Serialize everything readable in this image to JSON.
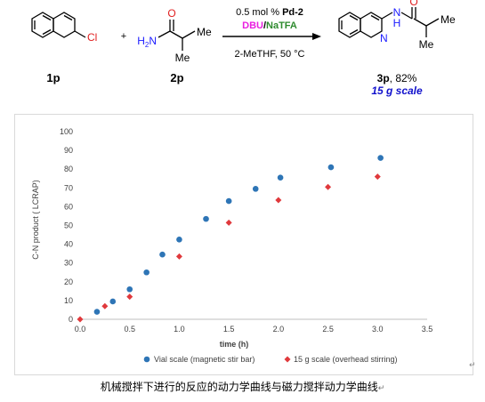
{
  "scheme": {
    "reactant1_label": "1p",
    "reactant1_substituent": "Cl",
    "plus_sign": "+",
    "reactant2_label": "2p",
    "reactant2_atoms": {
      "nh2": "H",
      "nh2_n": "N",
      "nh2_sub": "2",
      "carbonyl_o": "O",
      "me1": "Me",
      "me2": "Me"
    },
    "conditions": {
      "catalyst_amount": "0.5 mol %",
      "catalyst_name": "Pd-2",
      "base": "DBU",
      "slash": "/",
      "additive": "NaTFA",
      "solvent_temp": "2-MeTHF, 50 °C"
    },
    "product": {
      "atoms": {
        "n_ring": "N",
        "nh_n": "N",
        "nh_h": "H",
        "carbonyl_o": "O",
        "me1": "Me",
        "me2": "Me"
      },
      "label": "3p",
      "yield": ", 82%",
      "scale": "15 g scale"
    },
    "colors": {
      "base": "#e91ee0",
      "additive": "#2e8b2e",
      "scale": "#1111cc",
      "chlorine": "#e02020",
      "nitrogen": "#1a1aff",
      "oxygen": "#e02020"
    }
  },
  "chart_data": {
    "type": "scatter",
    "title": "",
    "xlabel": "time (h)",
    "ylabel": "C-N product ( LCRAP)",
    "xlim": [
      0,
      3.5
    ],
    "ylim": [
      0,
      100
    ],
    "xticks": [
      "0.0",
      "0.5",
      "1.0",
      "1.5",
      "2.0",
      "2.5",
      "3.0",
      "3.5"
    ],
    "yticks": [
      "0",
      "10",
      "20",
      "30",
      "40",
      "50",
      "60",
      "70",
      "80",
      "90",
      "100"
    ],
    "grid": false,
    "legend_position": "bottom",
    "series": [
      {
        "name": "Vial scale (magnetic stir bar)",
        "marker": "circle",
        "color": "#2e75b6",
        "points": [
          [
            0.17,
            4
          ],
          [
            0.33,
            9.5
          ],
          [
            0.5,
            16
          ],
          [
            0.67,
            25
          ],
          [
            0.83,
            34.5
          ],
          [
            1.0,
            42.5
          ],
          [
            1.27,
            53.5
          ],
          [
            1.5,
            63
          ],
          [
            1.77,
            69.5
          ],
          [
            2.02,
            75.5
          ],
          [
            2.53,
            81
          ],
          [
            3.03,
            86
          ]
        ]
      },
      {
        "name": "15 g scale (overhead stirring)",
        "marker": "diamond",
        "color": "#e0393c",
        "points": [
          [
            0.0,
            0
          ],
          [
            0.25,
            7
          ],
          [
            0.5,
            12
          ],
          [
            1.0,
            33.5
          ],
          [
            1.5,
            51.5
          ],
          [
            2.0,
            63.5
          ],
          [
            2.5,
            70.5
          ],
          [
            3.0,
            76
          ]
        ]
      }
    ]
  },
  "caption": "机械搅拌下进行的反应的动力学曲线与磁力搅拌动力学曲线",
  "return_mark": "↵"
}
